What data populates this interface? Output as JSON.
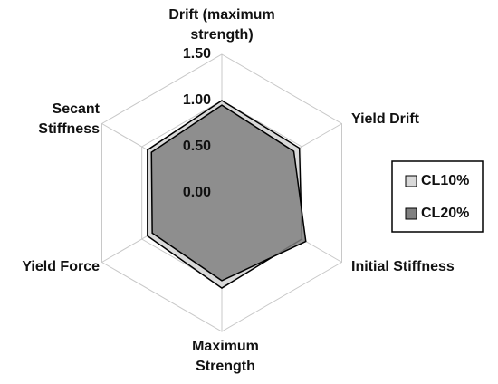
{
  "chart_data": {
    "type": "radar",
    "categories": [
      [
        "Drift (maximum",
        "strength)"
      ],
      [
        "Yield Drift"
      ],
      [
        "Initial Stiffness"
      ],
      [
        "Maximum",
        "Strength"
      ],
      [
        "Yield Force"
      ],
      [
        "Secant",
        "Stiffness"
      ]
    ],
    "series": [
      {
        "name": "CL10%",
        "color": "#d9d9d9",
        "values": [
          1.0,
          0.97,
          1.0,
          1.03,
          0.93,
          0.93
        ]
      },
      {
        "name": "CL20%",
        "color": "#808080",
        "values": [
          0.95,
          0.9,
          1.05,
          0.95,
          0.87,
          0.88
        ]
      }
    ],
    "rlim": [
      0,
      1.5
    ],
    "rticks": [
      {
        "value": 0,
        "label": "0.00"
      },
      {
        "value": 0.5,
        "label": "0.50"
      },
      {
        "value": 1,
        "label": "1.00"
      },
      {
        "value": 1.5,
        "label": "1.50"
      }
    ],
    "grid": true,
    "legend": "right"
  }
}
